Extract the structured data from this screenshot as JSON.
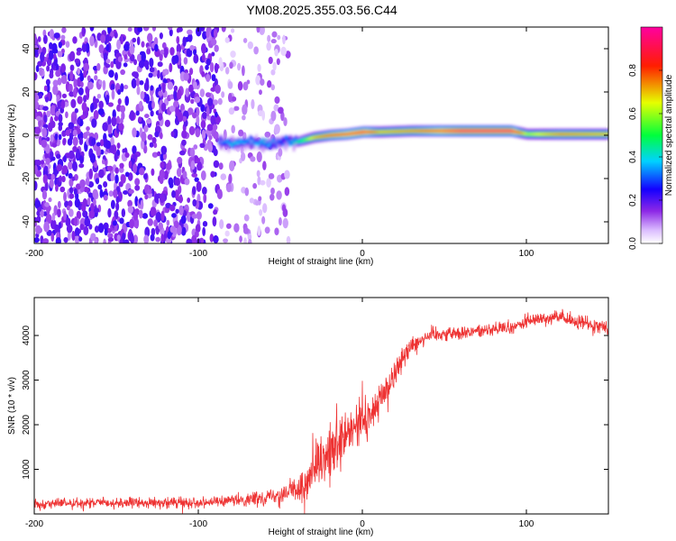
{
  "title": "YM08.2025.355.03.56.C44",
  "chart_data": [
    {
      "type": "heatmap",
      "xlabel": "Height of straight line (km)",
      "ylabel": "Frequency (Hz)",
      "xlim": [
        -200,
        150
      ],
      "ylim": [
        -50,
        50
      ],
      "xticks": [
        -200,
        -100,
        0,
        100
      ],
      "xtick_labels": [
        "-200",
        "-100",
        "0",
        "100"
      ],
      "yticks": [
        -40,
        -20,
        0,
        20,
        40
      ],
      "ytick_labels": [
        "-40",
        "-20",
        "0",
        "20",
        "40"
      ],
      "colorbar": {
        "label": "Normalized spectral amplitude",
        "range": [
          0,
          1
        ],
        "ticks": [
          0,
          0.2,
          0.4,
          0.6,
          0.8
        ],
        "tick_labels": [
          "0.0",
          "0.2",
          "0.4",
          "0.6",
          "0.8"
        ],
        "colormap": "rainbow-white"
      },
      "ridge": {
        "x": [
          -88,
          -80,
          -70,
          -60,
          -50,
          -40,
          -30,
          -20,
          -10,
          0,
          10,
          30,
          60,
          90,
          100,
          120,
          150
        ],
        "frequency": [
          -3,
          -4,
          -3,
          -4,
          -3,
          -3,
          -1,
          0,
          0.5,
          1.5,
          1.5,
          2,
          2,
          2,
          0.5,
          0.5,
          0.5
        ],
        "amplitude": [
          0.3,
          0.4,
          0.35,
          0.4,
          0.3,
          0.45,
          0.7,
          0.8,
          0.85,
          0.9,
          0.7,
          0.75,
          0.95,
          0.95,
          0.6,
          0.75,
          0.7
        ]
      },
      "noise_band": {
        "x_range": [
          -200,
          -45
        ],
        "amplitude": 0.15
      }
    },
    {
      "type": "line",
      "xlabel": "Height of straight line (km)",
      "ylabel": "SNR (10 * v/v)",
      "xlim": [
        -200,
        150
      ],
      "ylim": [
        0,
        4850
      ],
      "xticks": [
        -200,
        -100,
        0,
        100
      ],
      "xtick_labels": [
        "-200",
        "-100",
        "0",
        "100"
      ],
      "yticks": [
        1000,
        2000,
        3000,
        4000
      ],
      "ytick_labels": [
        "1000",
        "2000",
        "3000",
        "4000"
      ],
      "color": "#ee3333",
      "series": [
        {
          "x": [
            -200,
            -180,
            -160,
            -140,
            -120,
            -100,
            -80,
            -70,
            -60,
            -50,
            -45,
            -40,
            -35,
            -30,
            -25,
            -20,
            -15,
            -10,
            -5,
            0,
            5,
            10,
            15,
            20,
            25,
            30,
            35,
            40,
            50,
            60,
            70,
            80,
            90,
            100,
            110,
            120,
            130,
            140,
            150
          ],
          "values": [
            230,
            240,
            240,
            250,
            250,
            260,
            290,
            320,
            380,
            450,
            500,
            550,
            650,
            900,
            1100,
            1300,
            1500,
            1700,
            1900,
            2100,
            2200,
            2500,
            2800,
            3200,
            3500,
            3800,
            3900,
            4000,
            4050,
            4050,
            4100,
            4150,
            4150,
            4300,
            4400,
            4400,
            4300,
            4250,
            4200
          ],
          "noise": [
            110,
            110,
            110,
            110,
            110,
            110,
            120,
            130,
            150,
            200,
            250,
            280,
            350,
            450,
            500,
            550,
            600,
            600,
            550,
            500,
            450,
            400,
            350,
            300,
            250,
            200,
            200,
            200,
            150,
            150,
            150,
            150,
            150,
            150,
            150,
            150,
            150,
            150,
            150
          ]
        }
      ]
    }
  ]
}
